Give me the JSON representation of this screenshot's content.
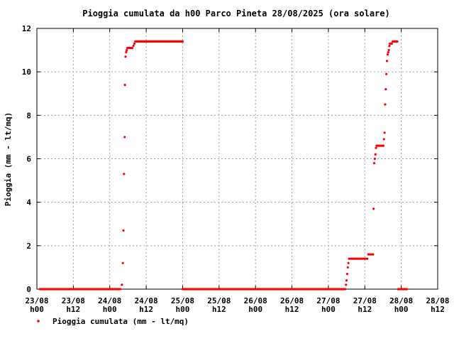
{
  "chart_data": {
    "type": "scatter",
    "title": "Pioggia cumulata da h00 Parco Pineta 28/08/2025 (ora solare)",
    "ylabel": "Pioggia (mm - lt/mq)",
    "xlabel": "",
    "xlim": [
      0,
      132
    ],
    "ylim": [
      0,
      12
    ],
    "x_unit": "hours from 23/08 h00",
    "y_ticks": [
      "0",
      "2",
      "4",
      "6",
      "8",
      "10",
      "12"
    ],
    "x_ticks": [
      {
        "x": 0,
        "l1": "23/08",
        "l2": "h00"
      },
      {
        "x": 12,
        "l1": "23/08",
        "l2": "h12"
      },
      {
        "x": 24,
        "l1": "24/08",
        "l2": "h00"
      },
      {
        "x": 36,
        "l1": "24/08",
        "l2": "h12"
      },
      {
        "x": 48,
        "l1": "25/08",
        "l2": "h00"
      },
      {
        "x": 60,
        "l1": "25/08",
        "l2": "h12"
      },
      {
        "x": 72,
        "l1": "26/08",
        "l2": "h00"
      },
      {
        "x": 84,
        "l1": "26/08",
        "l2": "h12"
      },
      {
        "x": 96,
        "l1": "27/08",
        "l2": "h00"
      },
      {
        "x": 108,
        "l1": "27/08",
        "l2": "h12"
      },
      {
        "x": 120,
        "l1": "28/08",
        "l2": "h00"
      },
      {
        "x": 132,
        "l1": "28/08",
        "l2": "h12"
      }
    ],
    "grid": true,
    "legend_position": "bottom-left",
    "series": [
      {
        "name": "Pioggia cumulata (mm - lt/mq)",
        "color": "#ff0000",
        "points": [
          [
            1,
            0
          ],
          [
            2,
            0
          ],
          [
            3,
            0
          ],
          [
            4,
            0
          ],
          [
            5,
            0
          ],
          [
            6,
            0
          ],
          [
            7,
            0
          ],
          [
            8,
            0
          ],
          [
            9,
            0
          ],
          [
            10,
            0
          ],
          [
            11,
            0
          ],
          [
            12,
            0
          ],
          [
            13,
            0
          ],
          [
            14,
            0
          ],
          [
            15,
            0
          ],
          [
            16,
            0
          ],
          [
            17,
            0
          ],
          [
            18,
            0
          ],
          [
            19,
            0
          ],
          [
            20,
            0
          ],
          [
            21,
            0
          ],
          [
            22,
            0
          ],
          [
            23,
            0
          ],
          [
            24,
            0
          ],
          [
            25,
            0
          ],
          [
            26,
            0
          ],
          [
            27,
            0
          ],
          [
            27.5,
            0
          ],
          [
            28.0,
            0.2
          ],
          [
            28.3,
            1.2
          ],
          [
            28.5,
            2.7
          ],
          [
            28.7,
            5.3
          ],
          [
            28.9,
            7.0
          ],
          [
            29.0,
            9.4
          ],
          [
            29.2,
            10.7
          ],
          [
            29.4,
            10.9
          ],
          [
            29.6,
            11.0
          ],
          [
            29.8,
            11.1
          ],
          [
            30.2,
            11.1
          ],
          [
            30.6,
            11.1
          ],
          [
            31.0,
            11.1
          ],
          [
            31.4,
            11.1
          ],
          [
            31.8,
            11.2
          ],
          [
            32.1,
            11.3
          ],
          [
            32.4,
            11.4
          ],
          [
            33,
            11.4
          ],
          [
            34,
            11.4
          ],
          [
            35,
            11.4
          ],
          [
            36,
            11.4
          ],
          [
            37,
            11.4
          ],
          [
            38,
            11.4
          ],
          [
            39,
            11.4
          ],
          [
            40,
            11.4
          ],
          [
            41,
            11.4
          ],
          [
            42,
            11.4
          ],
          [
            43,
            11.4
          ],
          [
            44,
            11.4
          ],
          [
            45,
            11.4
          ],
          [
            46,
            11.4
          ],
          [
            47,
            11.4
          ],
          [
            48,
            11.4
          ],
          [
            48,
            0
          ],
          [
            49,
            0
          ],
          [
            50,
            0
          ],
          [
            51,
            0
          ],
          [
            52,
            0
          ],
          [
            53,
            0
          ],
          [
            54,
            0
          ],
          [
            55,
            0
          ],
          [
            56,
            0
          ],
          [
            57,
            0
          ],
          [
            58,
            0
          ],
          [
            59,
            0
          ],
          [
            60,
            0
          ],
          [
            61,
            0
          ],
          [
            62,
            0
          ],
          [
            63,
            0
          ],
          [
            64,
            0
          ],
          [
            65,
            0
          ],
          [
            66,
            0
          ],
          [
            67,
            0
          ],
          [
            68,
            0
          ],
          [
            69,
            0
          ],
          [
            70,
            0
          ],
          [
            71,
            0
          ],
          [
            72,
            0
          ],
          [
            73,
            0
          ],
          [
            74,
            0
          ],
          [
            75,
            0
          ],
          [
            76,
            0
          ],
          [
            77,
            0
          ],
          [
            78,
            0
          ],
          [
            79,
            0
          ],
          [
            80,
            0
          ],
          [
            81,
            0
          ],
          [
            82,
            0
          ],
          [
            83,
            0
          ],
          [
            84,
            0
          ],
          [
            85,
            0
          ],
          [
            86,
            0
          ],
          [
            87,
            0
          ],
          [
            88,
            0
          ],
          [
            89,
            0
          ],
          [
            90,
            0
          ],
          [
            91,
            0
          ],
          [
            92,
            0
          ],
          [
            93,
            0
          ],
          [
            94,
            0
          ],
          [
            95,
            0
          ],
          [
            96,
            0
          ],
          [
            97,
            0
          ],
          [
            98,
            0
          ],
          [
            99,
            0
          ],
          [
            100,
            0
          ],
          [
            101,
            0
          ],
          [
            101.5,
            0
          ],
          [
            101.8,
            0.2
          ],
          [
            102.0,
            0.4
          ],
          [
            102.2,
            0.7
          ],
          [
            102.4,
            1.0
          ],
          [
            102.6,
            1.2
          ],
          [
            102.8,
            1.4
          ],
          [
            103.2,
            1.4
          ],
          [
            103.6,
            1.4
          ],
          [
            104.0,
            1.4
          ],
          [
            104.4,
            1.4
          ],
          [
            104.8,
            1.4
          ],
          [
            105.2,
            1.4
          ],
          [
            105.6,
            1.4
          ],
          [
            106.0,
            1.4
          ],
          [
            106.4,
            1.4
          ],
          [
            106.8,
            1.4
          ],
          [
            107.2,
            1.4
          ],
          [
            107.6,
            1.4
          ],
          [
            108.0,
            1.4
          ],
          [
            108.4,
            1.4
          ],
          [
            108.8,
            1.4
          ],
          [
            109.2,
            1.6
          ],
          [
            109.6,
            1.6
          ],
          [
            110.0,
            1.6
          ],
          [
            110.4,
            1.6
          ],
          [
            110.7,
            1.6
          ],
          [
            110.9,
            3.7
          ],
          [
            111.1,
            5.8
          ],
          [
            111.3,
            6.0
          ],
          [
            111.5,
            6.2
          ],
          [
            111.7,
            6.5
          ],
          [
            111.9,
            6.6
          ],
          [
            112.3,
            6.6
          ],
          [
            112.7,
            6.6
          ],
          [
            113.1,
            6.6
          ],
          [
            113.5,
            6.6
          ],
          [
            113.9,
            6.6
          ],
          [
            114.1,
            6.6
          ],
          [
            114.3,
            6.9
          ],
          [
            114.5,
            7.2
          ],
          [
            114.7,
            8.5
          ],
          [
            114.9,
            9.2
          ],
          [
            115.1,
            9.9
          ],
          [
            115.3,
            10.5
          ],
          [
            115.5,
            10.8
          ],
          [
            115.7,
            10.9
          ],
          [
            115.9,
            11.0
          ],
          [
            116.1,
            11.2
          ],
          [
            116.3,
            11.3
          ],
          [
            116.6,
            11.3
          ],
          [
            116.9,
            11.3
          ],
          [
            117.2,
            11.4
          ],
          [
            117.5,
            11.4
          ],
          [
            117.8,
            11.4
          ],
          [
            118.1,
            11.4
          ],
          [
            118.4,
            11.4
          ],
          [
            118.7,
            11.4
          ],
          [
            119.0,
            0
          ],
          [
            119.4,
            0
          ],
          [
            119.8,
            0
          ],
          [
            120.2,
            0
          ],
          [
            120.6,
            0
          ],
          [
            121.0,
            0
          ],
          [
            121.4,
            0
          ],
          [
            121.8,
            0
          ]
        ]
      }
    ]
  }
}
